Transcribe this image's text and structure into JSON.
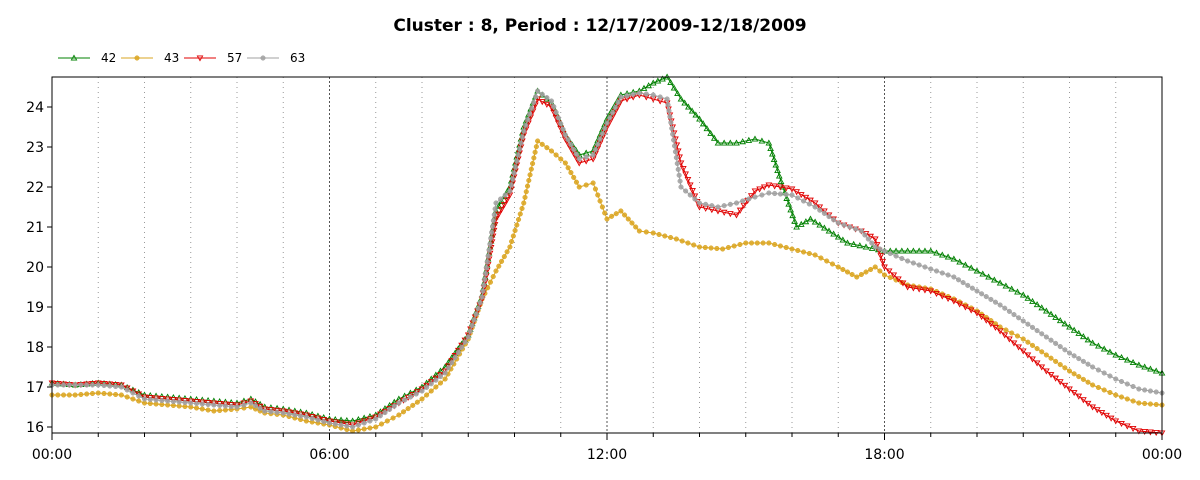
{
  "chart_data": {
    "type": "line",
    "title": "Cluster : 8, Period : 12/17/2009-12/18/2009",
    "xlabel": "",
    "ylabel": "",
    "x_tick_labels": [
      "00:00",
      "06:00",
      "12:00",
      "18:00",
      "00:00"
    ],
    "x_range_hours": [
      0,
      24
    ],
    "ylim": [
      15.85,
      24.75
    ],
    "y_ticks": [
      16,
      17,
      18,
      19,
      20,
      21,
      22,
      23,
      24
    ],
    "grid": "dotted vertical lines",
    "legend_position": "top-left",
    "series": [
      {
        "name": "42",
        "color": "#008000",
        "marker": "triangle-up",
        "points": [
          [
            0,
            17.1
          ],
          [
            0.5,
            17.05
          ],
          [
            1,
            17.1
          ],
          [
            1.5,
            17.05
          ],
          [
            2,
            16.8
          ],
          [
            2.5,
            16.75
          ],
          [
            3,
            16.7
          ],
          [
            3.5,
            16.65
          ],
          [
            4,
            16.6
          ],
          [
            4.3,
            16.7
          ],
          [
            4.6,
            16.5
          ],
          [
            5,
            16.45
          ],
          [
            5.5,
            16.35
          ],
          [
            6,
            16.2
          ],
          [
            6.5,
            16.15
          ],
          [
            7,
            16.3
          ],
          [
            7.5,
            16.7
          ],
          [
            8,
            17
          ],
          [
            8.5,
            17.5
          ],
          [
            9,
            18.3
          ],
          [
            9.3,
            19.3
          ],
          [
            9.6,
            21.4
          ],
          [
            9.9,
            22
          ],
          [
            10.2,
            23.5
          ],
          [
            10.5,
            24.4
          ],
          [
            10.8,
            24.1
          ],
          [
            11.1,
            23.3
          ],
          [
            11.4,
            22.8
          ],
          [
            11.7,
            22.9
          ],
          [
            12,
            23.7
          ],
          [
            12.3,
            24.3
          ],
          [
            12.7,
            24.4
          ],
          [
            13,
            24.6
          ],
          [
            13.3,
            24.75
          ],
          [
            13.6,
            24.2
          ],
          [
            14,
            23.7
          ],
          [
            14.4,
            23.1
          ],
          [
            14.8,
            23.1
          ],
          [
            15.2,
            23.2
          ],
          [
            15.5,
            23.1
          ],
          [
            15.8,
            22
          ],
          [
            16.1,
            21
          ],
          [
            16.4,
            21.2
          ],
          [
            16.8,
            20.9
          ],
          [
            17.2,
            20.6
          ],
          [
            17.6,
            20.5
          ],
          [
            18,
            20.4
          ],
          [
            18.5,
            20.4
          ],
          [
            19,
            20.4
          ],
          [
            19.5,
            20.2
          ],
          [
            20,
            19.9
          ],
          [
            20.5,
            19.6
          ],
          [
            21,
            19.3
          ],
          [
            21.5,
            18.9
          ],
          [
            22,
            18.5
          ],
          [
            22.5,
            18.1
          ],
          [
            23,
            17.8
          ],
          [
            23.5,
            17.55
          ],
          [
            24,
            17.35
          ]
        ]
      },
      {
        "name": "43",
        "color": "#DAA520",
        "marker": "circle",
        "points": [
          [
            0,
            16.8
          ],
          [
            0.5,
            16.8
          ],
          [
            1,
            16.85
          ],
          [
            1.5,
            16.8
          ],
          [
            2,
            16.6
          ],
          [
            2.5,
            16.55
          ],
          [
            3,
            16.5
          ],
          [
            3.5,
            16.4
          ],
          [
            4,
            16.45
          ],
          [
            4.3,
            16.5
          ],
          [
            4.6,
            16.35
          ],
          [
            5,
            16.3
          ],
          [
            5.5,
            16.15
          ],
          [
            6,
            16.05
          ],
          [
            6.5,
            15.9
          ],
          [
            7,
            16
          ],
          [
            7.5,
            16.3
          ],
          [
            8,
            16.7
          ],
          [
            8.5,
            17.2
          ],
          [
            9,
            18.2
          ],
          [
            9.3,
            19.2
          ],
          [
            9.6,
            19.9
          ],
          [
            9.9,
            20.5
          ],
          [
            10.2,
            21.6
          ],
          [
            10.5,
            23.15
          ],
          [
            10.8,
            22.9
          ],
          [
            11.1,
            22.6
          ],
          [
            11.4,
            22
          ],
          [
            11.7,
            22.1
          ],
          [
            12,
            21.2
          ],
          [
            12.3,
            21.4
          ],
          [
            12.7,
            20.9
          ],
          [
            13,
            20.85
          ],
          [
            13.5,
            20.7
          ],
          [
            14,
            20.5
          ],
          [
            14.5,
            20.45
          ],
          [
            15,
            20.6
          ],
          [
            15.5,
            20.6
          ],
          [
            16,
            20.45
          ],
          [
            16.5,
            20.3
          ],
          [
            17,
            20
          ],
          [
            17.4,
            19.75
          ],
          [
            17.8,
            20
          ],
          [
            18,
            19.8
          ],
          [
            18.5,
            19.55
          ],
          [
            19,
            19.45
          ],
          [
            19.5,
            19.2
          ],
          [
            20,
            18.9
          ],
          [
            20.5,
            18.5
          ],
          [
            21,
            18.2
          ],
          [
            21.5,
            17.8
          ],
          [
            22,
            17.4
          ],
          [
            22.5,
            17.05
          ],
          [
            23,
            16.8
          ],
          [
            23.5,
            16.6
          ],
          [
            24,
            16.55
          ]
        ]
      },
      {
        "name": "57",
        "color": "#E00000",
        "marker": "triangle-down",
        "points": [
          [
            0,
            17.1
          ],
          [
            0.5,
            17.05
          ],
          [
            1,
            17.1
          ],
          [
            1.5,
            17.05
          ],
          [
            2,
            16.75
          ],
          [
            2.5,
            16.7
          ],
          [
            3,
            16.65
          ],
          [
            3.5,
            16.6
          ],
          [
            4,
            16.55
          ],
          [
            4.3,
            16.65
          ],
          [
            4.6,
            16.45
          ],
          [
            5,
            16.4
          ],
          [
            5.5,
            16.3
          ],
          [
            6,
            16.15
          ],
          [
            6.5,
            16.05
          ],
          [
            7,
            16.25
          ],
          [
            7.5,
            16.6
          ],
          [
            8,
            16.95
          ],
          [
            8.5,
            17.4
          ],
          [
            9,
            18.3
          ],
          [
            9.3,
            19.2
          ],
          [
            9.6,
            21.2
          ],
          [
            9.9,
            21.8
          ],
          [
            10.2,
            23.3
          ],
          [
            10.5,
            24.2
          ],
          [
            10.8,
            24
          ],
          [
            11.1,
            23.2
          ],
          [
            11.4,
            22.6
          ],
          [
            11.7,
            22.7
          ],
          [
            12,
            23.5
          ],
          [
            12.3,
            24.15
          ],
          [
            12.7,
            24.3
          ],
          [
            13,
            24.2
          ],
          [
            13.3,
            24.1
          ],
          [
            13.6,
            22.6
          ],
          [
            14,
            21.5
          ],
          [
            14.4,
            21.4
          ],
          [
            14.8,
            21.3
          ],
          [
            15.2,
            21.9
          ],
          [
            15.5,
            22.05
          ],
          [
            16,
            21.95
          ],
          [
            16.5,
            21.6
          ],
          [
            17,
            21.1
          ],
          [
            17.5,
            20.9
          ],
          [
            17.8,
            20.7
          ],
          [
            18,
            20
          ],
          [
            18.5,
            19.5
          ],
          [
            19,
            19.4
          ],
          [
            19.5,
            19.15
          ],
          [
            20,
            18.85
          ],
          [
            20.5,
            18.4
          ],
          [
            21,
            17.9
          ],
          [
            21.5,
            17.4
          ],
          [
            22,
            16.95
          ],
          [
            22.5,
            16.5
          ],
          [
            23,
            16.15
          ],
          [
            23.5,
            15.9
          ],
          [
            24,
            15.85
          ]
        ]
      },
      {
        "name": "63",
        "color": "#A0A0A0",
        "marker": "circle",
        "points": [
          [
            0,
            17.05
          ],
          [
            0.5,
            17.05
          ],
          [
            1,
            17.05
          ],
          [
            1.5,
            17
          ],
          [
            2,
            16.7
          ],
          [
            2.5,
            16.65
          ],
          [
            3,
            16.6
          ],
          [
            3.5,
            16.55
          ],
          [
            4,
            16.5
          ],
          [
            4.3,
            16.6
          ],
          [
            4.6,
            16.4
          ],
          [
            5,
            16.35
          ],
          [
            5.5,
            16.25
          ],
          [
            6,
            16.1
          ],
          [
            6.5,
            16
          ],
          [
            7,
            16.2
          ],
          [
            7.5,
            16.6
          ],
          [
            8,
            16.9
          ],
          [
            8.5,
            17.35
          ],
          [
            9,
            18.25
          ],
          [
            9.3,
            19.25
          ],
          [
            9.6,
            21.6
          ],
          [
            9.9,
            21.9
          ],
          [
            10.2,
            23.4
          ],
          [
            10.5,
            24.4
          ],
          [
            10.8,
            24.15
          ],
          [
            11.1,
            23.3
          ],
          [
            11.4,
            22.7
          ],
          [
            11.7,
            22.8
          ],
          [
            12,
            23.6
          ],
          [
            12.3,
            24.25
          ],
          [
            12.7,
            24.35
          ],
          [
            13,
            24.3
          ],
          [
            13.3,
            24.2
          ],
          [
            13.6,
            22
          ],
          [
            14,
            21.6
          ],
          [
            14.4,
            21.5
          ],
          [
            14.8,
            21.6
          ],
          [
            15.2,
            21.75
          ],
          [
            15.5,
            21.85
          ],
          [
            16,
            21.8
          ],
          [
            16.5,
            21.5
          ],
          [
            17,
            21.1
          ],
          [
            17.5,
            20.9
          ],
          [
            17.8,
            20.5
          ],
          [
            18,
            20.4
          ],
          [
            18.5,
            20.15
          ],
          [
            19,
            19.95
          ],
          [
            19.5,
            19.75
          ],
          [
            20,
            19.4
          ],
          [
            20.5,
            19.05
          ],
          [
            21,
            18.65
          ],
          [
            21.5,
            18.25
          ],
          [
            22,
            17.85
          ],
          [
            22.5,
            17.5
          ],
          [
            23,
            17.2
          ],
          [
            23.5,
            16.95
          ],
          [
            24,
            16.85
          ]
        ]
      }
    ]
  }
}
